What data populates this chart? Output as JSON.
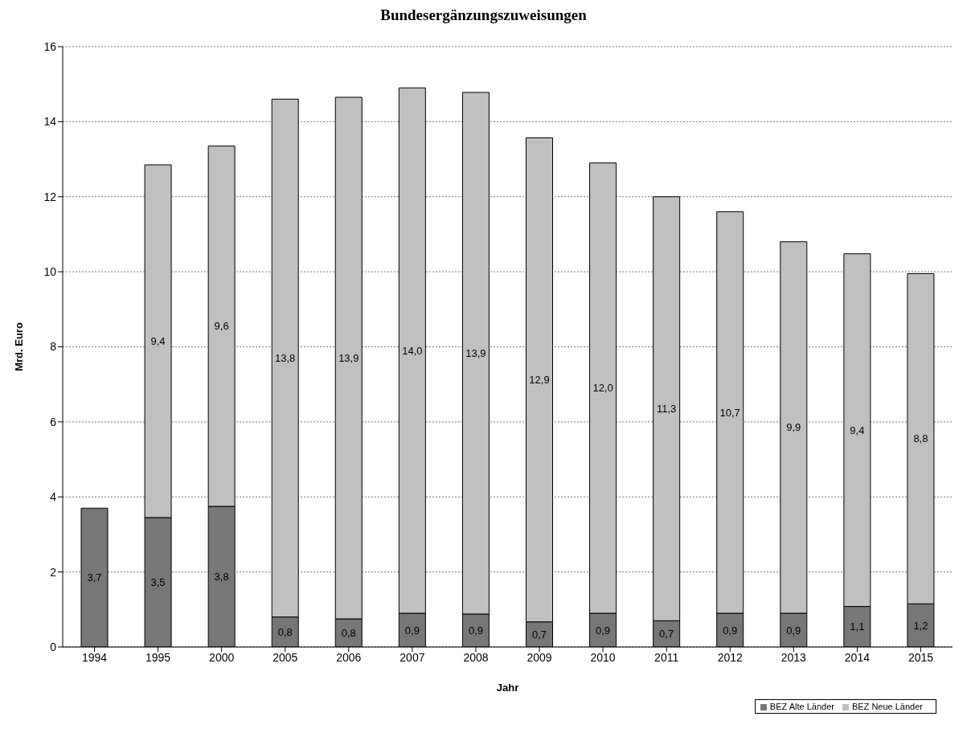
{
  "chart_data": {
    "type": "bar",
    "title": "Bundesergänzungszuweisungen",
    "xlabel": "Jahr",
    "ylabel": "Mrd. Euro",
    "stacked": true,
    "categories": [
      "1994",
      "1995",
      "2000",
      "2005",
      "2006",
      "2007",
      "2008",
      "2009",
      "2010",
      "2011",
      "2012",
      "2013",
      "2014",
      "2015"
    ],
    "series": [
      {
        "name": "BEZ Alte Länder",
        "color": "#777777",
        "values": [
          3.7,
          3.45,
          3.75,
          0.8,
          0.75,
          0.9,
          0.88,
          0.67,
          0.9,
          0.7,
          0.9,
          0.9,
          1.08,
          1.15
        ],
        "value_labels": [
          "3,7",
          "3,5",
          "3,8",
          "0,8",
          "0,8",
          "0,9",
          "0,9",
          "0,7",
          "0,9",
          "0,7",
          "0,9",
          "0,9",
          "1,1",
          "1,2"
        ]
      },
      {
        "name": "BEZ Neue Länder",
        "color": "#c0c0c0",
        "values": [
          null,
          9.4,
          9.6,
          13.8,
          13.9,
          14.0,
          13.9,
          12.9,
          12.0,
          11.3,
          10.7,
          9.9,
          9.4,
          8.8
        ],
        "value_labels": [
          null,
          "9,4",
          "9,6",
          "13,8",
          "13,9",
          "14,0",
          "13,9",
          "12,9",
          "12,0",
          "11,3",
          "10,7",
          "9,9",
          "9,4",
          "8,8"
        ]
      }
    ],
    "ylim": [
      0,
      16
    ],
    "yticks": [
      0,
      2,
      4,
      6,
      8,
      10,
      12,
      14,
      16
    ],
    "grid": "y",
    "legend": "bottom right"
  }
}
